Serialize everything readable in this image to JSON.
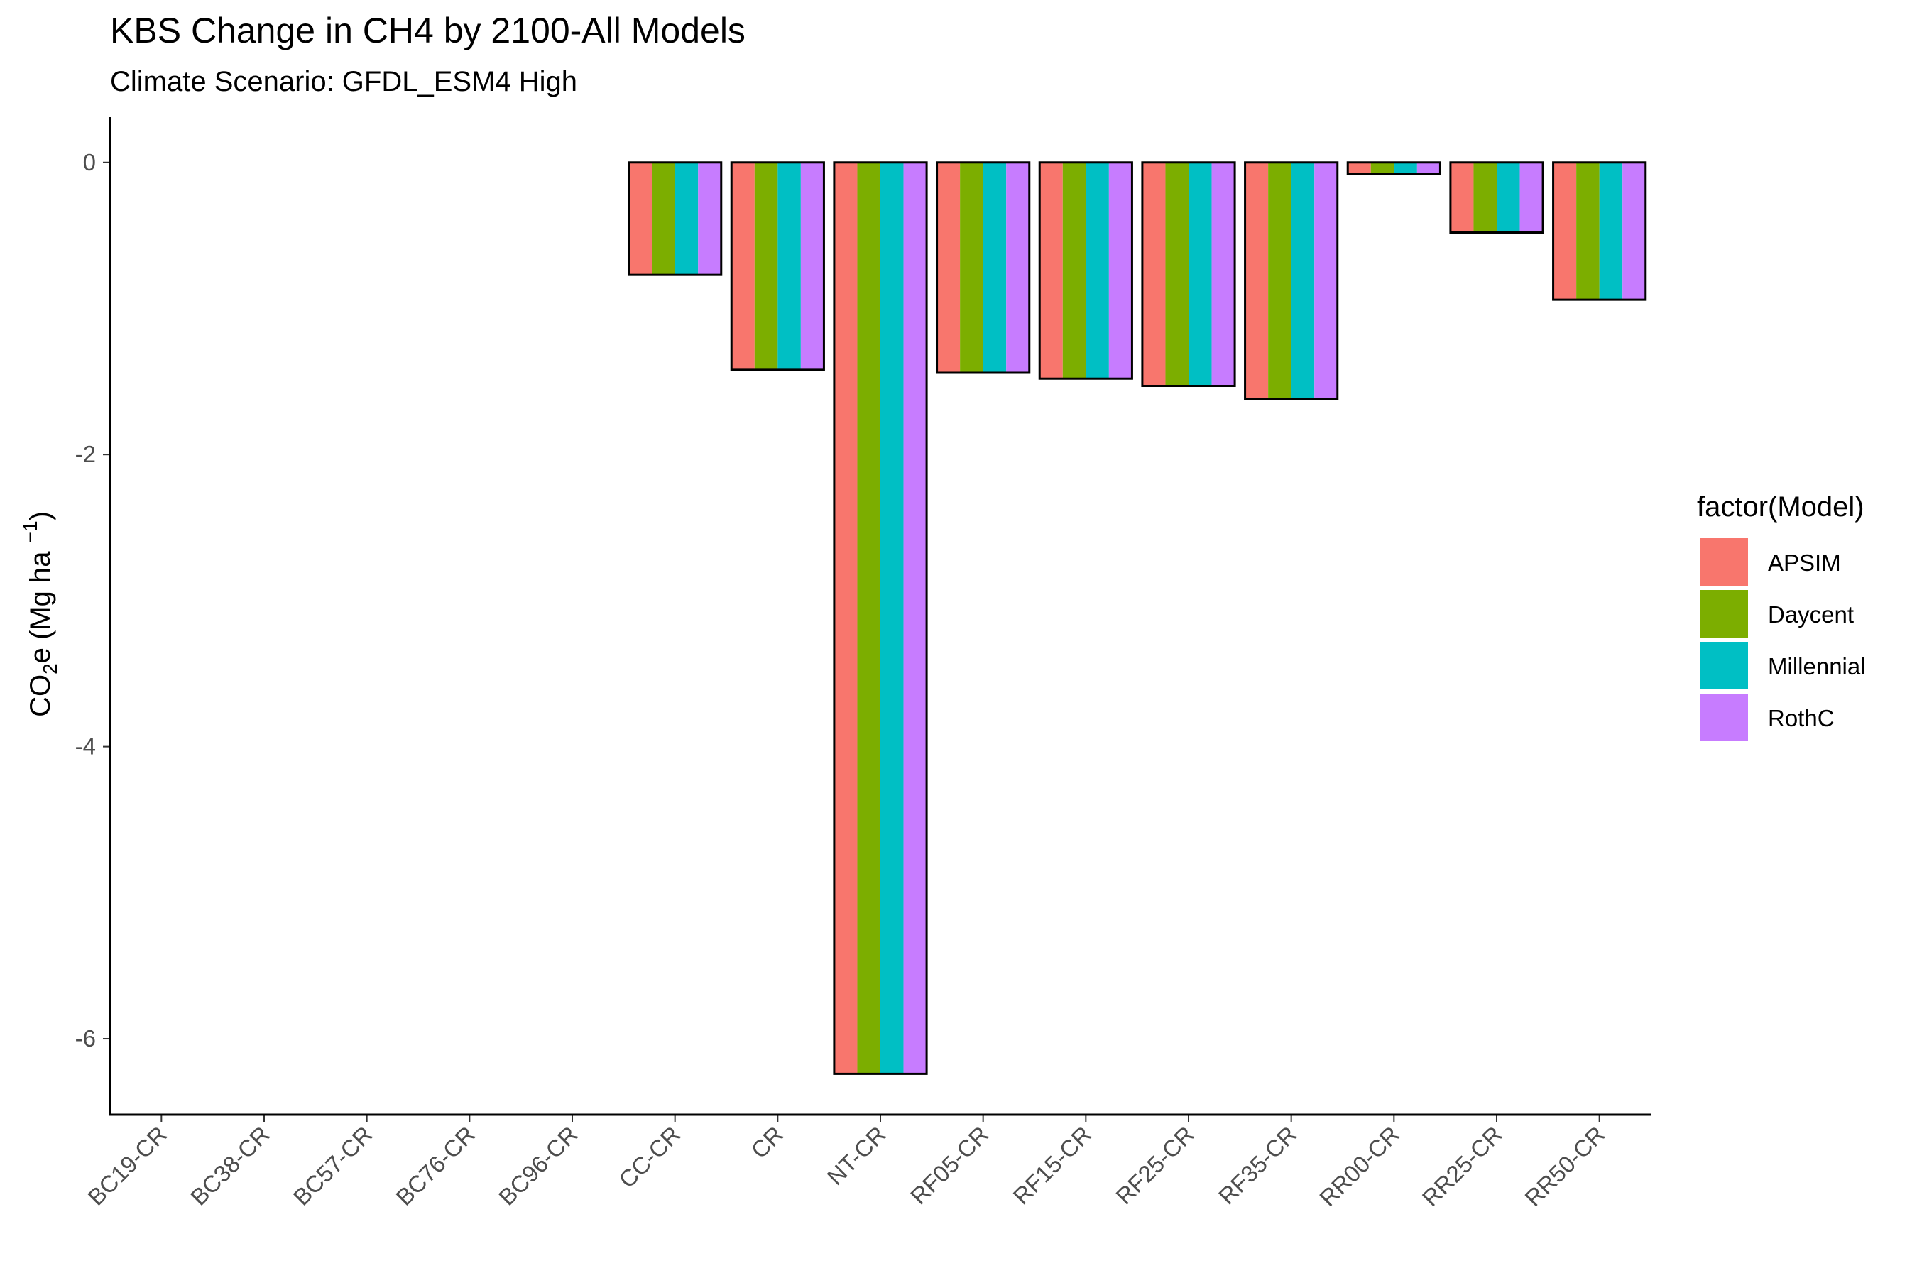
{
  "chart_data": {
    "type": "bar",
    "title": "KBS Change in CH4 by 2100-All Models",
    "subtitle": "Climate Scenario: GFDL_ESM4 High",
    "ylabel": {
      "prefix": "CO",
      "sub": "2",
      "mid": "e (Mg ha ",
      "sup": "−1",
      "suffix": ")"
    },
    "xlabel": "",
    "ylim": [
      -6.52,
      0.31
    ],
    "yticks": [
      0,
      -2,
      -4,
      -6
    ],
    "categories": [
      "BC19-CR",
      "BC38-CR",
      "BC57-CR",
      "BC76-CR",
      "BC96-CR",
      "CC-CR",
      "CR",
      "NT-CR",
      "RF05-CR",
      "RF15-CR",
      "RF25-CR",
      "RF35-CR",
      "RR00-CR",
      "RR25-CR",
      "RR50-CR"
    ],
    "totals": [
      0,
      0,
      0,
      0,
      0,
      -0.77,
      -1.42,
      -6.24,
      -1.44,
      -1.48,
      -1.53,
      -1.62,
      -0.08,
      -0.48,
      -0.94
    ],
    "series": [
      {
        "name": "APSIM",
        "color": "#F8766D",
        "values": [
          0,
          0,
          0,
          0,
          0,
          -0.77,
          -1.42,
          -6.24,
          -1.44,
          -1.48,
          -1.53,
          -1.62,
          -0.08,
          -0.48,
          -0.94
        ]
      },
      {
        "name": "Daycent",
        "color": "#7CAE00",
        "values": [
          0,
          0,
          0,
          0,
          0,
          -0.77,
          -1.42,
          -6.24,
          -1.44,
          -1.48,
          -1.53,
          -1.62,
          -0.08,
          -0.48,
          -0.94
        ]
      },
      {
        "name": "Millennial",
        "color": "#00BFC4",
        "values": [
          0,
          0,
          0,
          0,
          0,
          -0.77,
          -1.42,
          -6.24,
          -1.44,
          -1.48,
          -1.53,
          -1.62,
          -0.08,
          -0.48,
          -0.94
        ]
      },
      {
        "name": "RothC",
        "color": "#C77CFF",
        "values": [
          0,
          0,
          0,
          0,
          0,
          -0.77,
          -1.42,
          -6.24,
          -1.44,
          -1.48,
          -1.53,
          -1.62,
          -0.08,
          -0.48,
          -0.94
        ]
      }
    ],
    "legend": {
      "title": "factor(Model)",
      "position": "right"
    },
    "grid": false
  }
}
